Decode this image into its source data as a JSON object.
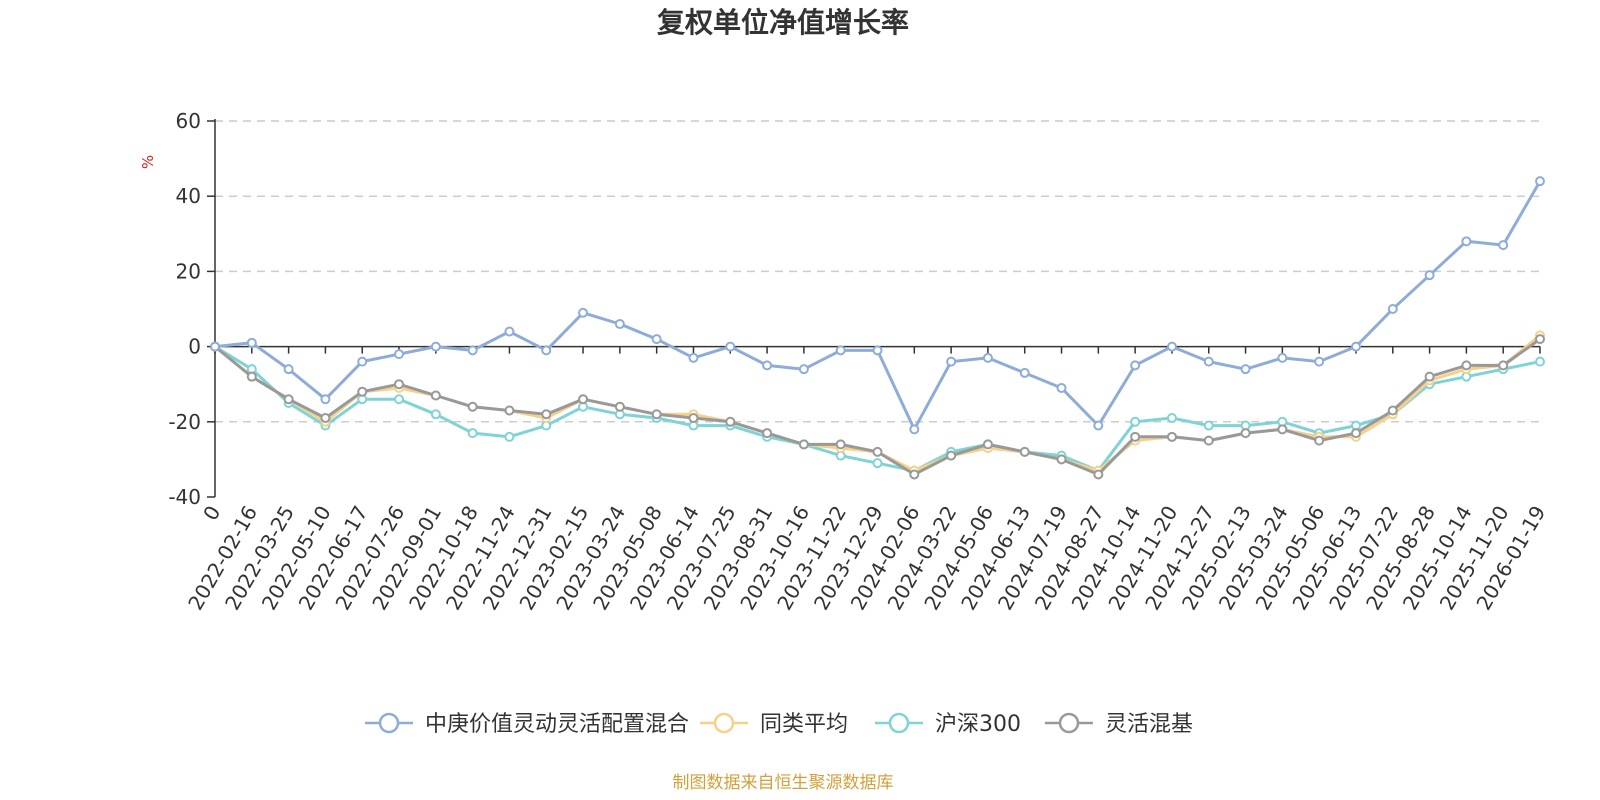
{
  "chart_data": {
    "type": "line",
    "title": "复权单位净值增长率",
    "ylabel": "%",
    "ylim": [
      -40,
      60
    ],
    "yticks": [
      "60",
      "40",
      "20",
      "0",
      "-20",
      "-40"
    ],
    "grid": true,
    "legend_position": "bottom",
    "source": "制图数据来自恒生聚源数据库",
    "x": [
      "0",
      "2022-02-16",
      "2022-03-25",
      "2022-05-10",
      "2022-06-17",
      "2022-07-26",
      "2022-09-01",
      "2022-10-18",
      "2022-11-24",
      "2022-12-31",
      "2023-02-15",
      "2023-03-24",
      "2023-05-08",
      "2023-06-14",
      "2023-07-25",
      "2023-08-31",
      "2023-10-16",
      "2023-11-22",
      "2023-12-29",
      "2024-02-06",
      "2024-03-22",
      "2024-05-06",
      "2024-06-13",
      "2024-07-19",
      "2024-08-27",
      "2024-10-14",
      "2024-11-20",
      "2024-12-27",
      "2025-02-13",
      "2025-03-24",
      "2025-05-06",
      "2025-06-13",
      "2025-07-22",
      "2025-08-28",
      "2025-10-14",
      "2025-11-20",
      "2026-01-19"
    ],
    "series": [
      {
        "name": "中庚价值灵动灵活配置混合",
        "color": "#8eacd9",
        "values": [
          0,
          1,
          -6,
          -14,
          -4,
          -2,
          0,
          -1,
          4,
          -1,
          9,
          6,
          2,
          -3,
          0,
          -5,
          -6,
          -1,
          -1,
          -22,
          -4,
          -3,
          -7,
          -11,
          -21,
          -5,
          0,
          -4,
          -6,
          -3,
          -4,
          0,
          10,
          19,
          28,
          27,
          44
        ]
      },
      {
        "name": "同类平均",
        "color": "#f7d08a",
        "values": [
          0,
          -8,
          -14,
          -20,
          -12,
          -11,
          -13,
          -16,
          -17,
          -19,
          -14,
          -16,
          -18,
          -18,
          -20,
          -23,
          -26,
          -27,
          -28,
          -33,
          -29,
          -27,
          -28,
          -30,
          -33,
          -25,
          -24,
          -25,
          -23,
          -22,
          -24,
          -24,
          -18,
          -9,
          -6,
          -5,
          3
        ]
      },
      {
        "name": "沪深300",
        "color": "#7fd3d6",
        "values": [
          0,
          -6,
          -15,
          -21,
          -14,
          -14,
          -18,
          -23,
          -24,
          -21,
          -16,
          -18,
          -19,
          -21,
          -21,
          -24,
          -26,
          -29,
          -31,
          -33,
          -28,
          -26,
          -28,
          -29,
          -33,
          -20,
          -19,
          -21,
          -21,
          -20,
          -23,
          -21,
          -18,
          -10,
          -8,
          -6,
          -4
        ]
      },
      {
        "name": "灵活混基",
        "color": "#999999",
        "values": [
          0,
          -8,
          -14,
          -19,
          -12,
          -10,
          -13,
          -16,
          -17,
          -18,
          -14,
          -16,
          -18,
          -19,
          -20,
          -23,
          -26,
          -26,
          -28,
          -34,
          -29,
          -26,
          -28,
          -30,
          -34,
          -24,
          -24,
          -25,
          -23,
          -22,
          -25,
          -23,
          -17,
          -8,
          -5,
          -5,
          2
        ]
      }
    ]
  }
}
